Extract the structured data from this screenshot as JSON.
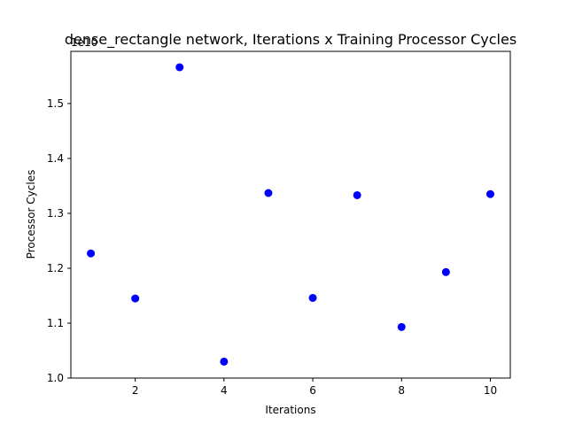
{
  "chart_data": {
    "type": "scatter",
    "title": "dense_rectangle network, Iterations x Training Processor Cycles",
    "xlabel": "Iterations",
    "ylabel": "Processor Cycles",
    "y_offset_label": "1e10",
    "x": [
      1,
      2,
      3,
      4,
      5,
      6,
      7,
      8,
      9,
      10
    ],
    "y": [
      1.227,
      1.145,
      1.566,
      1.03,
      1.337,
      1.146,
      1.333,
      1.093,
      1.193,
      1.335
    ],
    "y_scale_exponent": 10,
    "xlim": [
      0.55,
      10.45
    ],
    "ylim": [
      1.0,
      1.595
    ],
    "x_ticks": [
      2,
      4,
      6,
      8,
      10
    ],
    "x_tick_labels": [
      "2",
      "4",
      "6",
      "8",
      "10"
    ],
    "y_ticks": [
      1.0,
      1.1,
      1.2,
      1.3,
      1.4,
      1.5
    ],
    "y_tick_labels": [
      "1.0",
      "1.1",
      "1.2",
      "1.3",
      "1.4",
      "1.5"
    ],
    "marker_color": "#0000ff",
    "grid": false,
    "legend": "none"
  }
}
